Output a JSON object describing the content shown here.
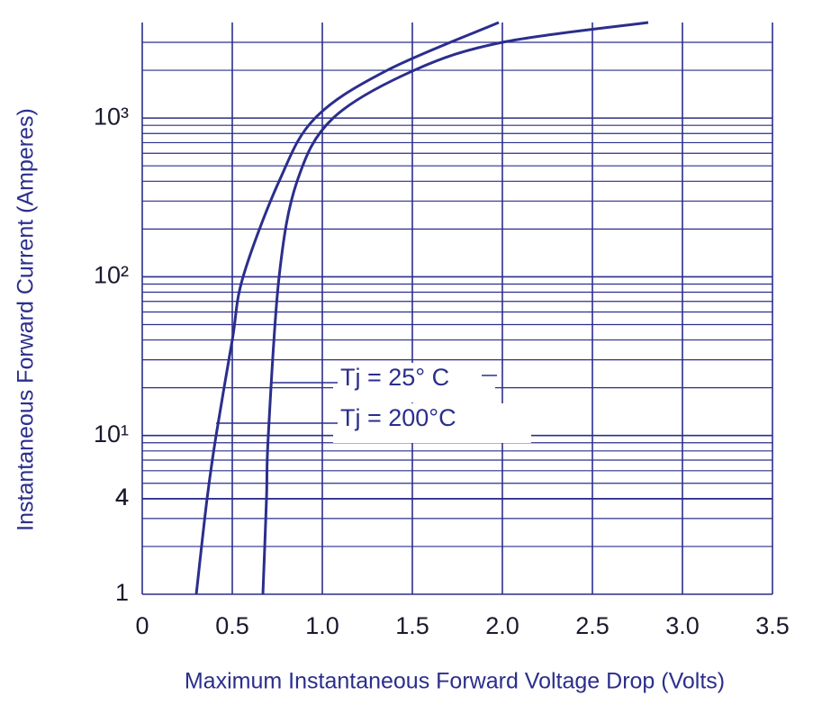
{
  "chart_data": {
    "type": "line",
    "xlabel": "Maximum Instantaneous Forward Voltage Drop (Volts)",
    "ylabel": "Instantaneous Forward Current (Amperes)",
    "xlim": [
      0,
      3.5
    ],
    "xticks": [
      0,
      0.5,
      {
        "value": 1.0,
        "label": "1.0"
      },
      1.5,
      {
        "value": 2.0,
        "label": "2.0"
      },
      2.5,
      {
        "value": 3.0,
        "label": "3.0"
      },
      3.5
    ],
    "ylim": [
      1,
      4000
    ],
    "log_y": true,
    "grid": true,
    "minor_grid": true,
    "yticks": [
      1,
      4,
      {
        "value": 10,
        "label": "10¹"
      },
      4,
      {
        "value": 100,
        "label": "10²"
      },
      4,
      {
        "value": 1000,
        "label": "10³"
      },
      4
    ],
    "series": [
      {
        "name": "Tj = 25° C",
        "color": "#2b2e8c",
        "x": [
          0.67,
          0.69,
          0.7,
          0.76,
          0.86,
          1.06,
          1.51,
          2.0,
          2.81
        ],
        "values": [
          1,
          4,
          10,
          100,
          400,
          1000,
          2000,
          3000,
          4000
        ]
      },
      {
        "name": "Tj = 200°C",
        "color": "#2b2e8c",
        "x": [
          0.3,
          0.36,
          0.41,
          0.5,
          0.56,
          0.76,
          0.96,
          1.36,
          1.98
        ],
        "values": [
          1,
          4,
          10,
          40,
          100,
          400,
          1000,
          2000,
          4000
        ]
      }
    ]
  }
}
